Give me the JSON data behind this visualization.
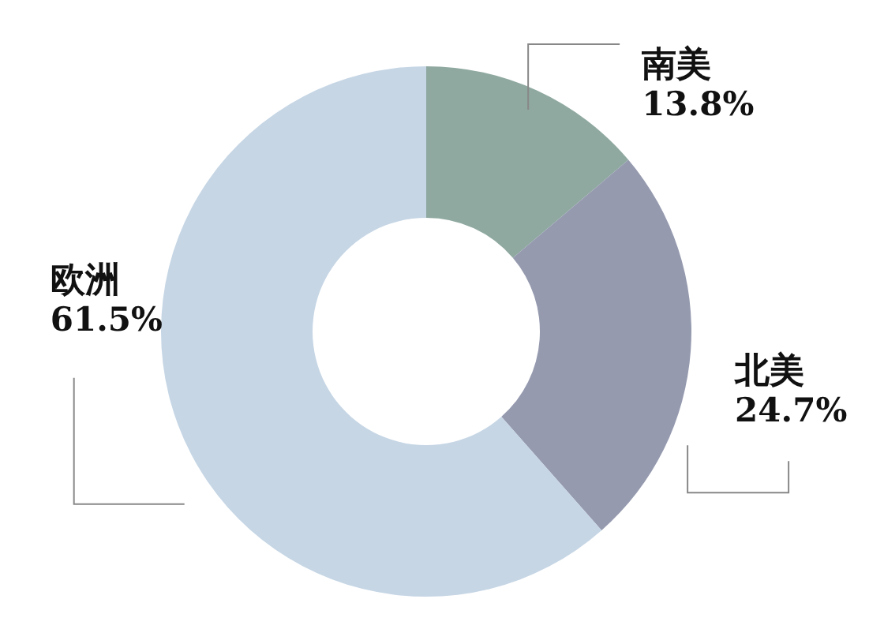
{
  "chart_data": {
    "type": "donut",
    "categories": [
      "南美",
      "北美",
      "欧洲"
    ],
    "values": [
      13.8,
      24.7,
      61.5
    ],
    "colors": [
      "#8fa9a1",
      "#959aaf",
      "#c6d6e5"
    ],
    "value_labels": [
      "13.8%",
      "24.7%",
      "61.5%"
    ]
  }
}
